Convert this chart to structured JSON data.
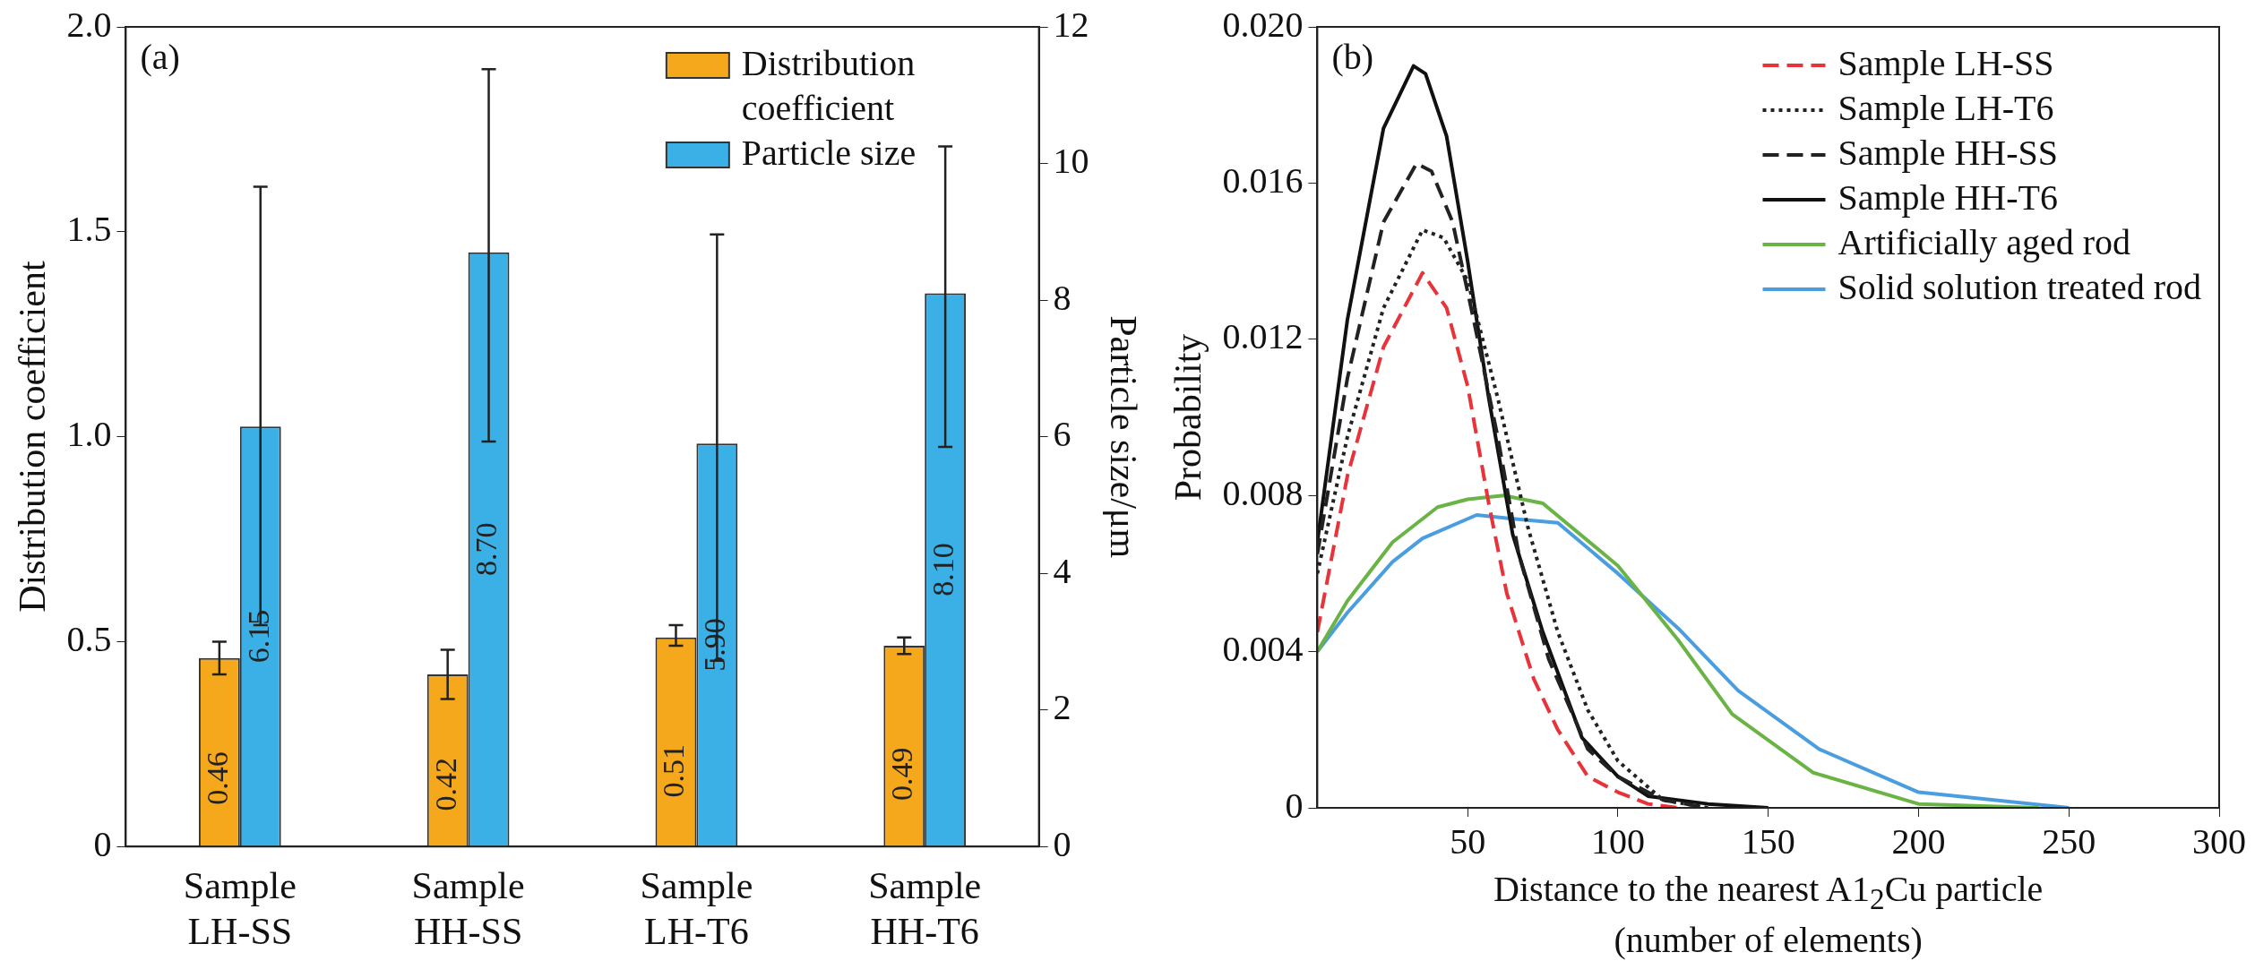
{
  "chart_data": [
    {
      "type": "bar",
      "ylabel": "Distribution coefficient",
      "y2label": "Particle size/μm",
      "categories": [
        "Sample LH-SS",
        "Sample HH-SS",
        "Sample LH-T6",
        "Sample HH-T6"
      ],
      "series": [
        {
          "name": "Distribution coefficient",
          "color": "#f5a81c",
          "values": [
            0.46,
            0.42,
            0.51,
            0.49
          ],
          "errors": [
            [
              0.42,
              0.5
            ],
            [
              0.36,
              0.48
            ],
            [
              0.49,
              0.54
            ],
            [
              0.47,
              0.51
            ]
          ],
          "value_labels": [
            "0.46",
            "0.42",
            "0.51",
            "0.49"
          ]
        },
        {
          "name": "Particle size",
          "color": "#3ab0e6",
          "axis": "y2",
          "values": [
            6.15,
            8.7,
            5.9,
            8.1
          ],
          "errors": [
            [
              3.24,
              9.66
            ],
            [
              5.93,
              11.38
            ],
            [
              2.72,
              8.96
            ],
            [
              5.85,
              10.25
            ]
          ],
          "value_labels": [
            "6.15",
            "8.70",
            "5.90",
            "8.10"
          ]
        }
      ],
      "ylim": [
        0,
        2
      ],
      "yticks": [
        0,
        0.5,
        {
          "value": 1,
          "label": "1.0"
        },
        1.5,
        {
          "value": 2,
          "label": "2.0"
        }
      ],
      "y2lim": [
        0,
        12
      ],
      "y2ticks": [
        0,
        2,
        4,
        6,
        8,
        10,
        12
      ],
      "legend": "top right",
      "grid": false,
      "annotations": [
        "(a)"
      ]
    },
    {
      "type": "line",
      "xlabel": "Distance to the nearest A1$_{2}$Cu particle (number of elements)",
      "ylabel": "Probability",
      "series": [
        {
          "name": "Sample LH-SS",
          "color": "#e8333a",
          "line_style": "dashed",
          "x": [
            0,
            10,
            22,
            35,
            43,
            50,
            57,
            63,
            72,
            80,
            90,
            100,
            110,
            120
          ],
          "values": [
            0.0045,
            0.0085,
            0.0118,
            0.0137,
            0.0128,
            0.0108,
            0.0078,
            0.0055,
            0.0033,
            0.002,
            0.0008,
            0.0004,
            0.0001,
            0
          ]
        },
        {
          "name": "Sample LH-T6",
          "color": "#222222",
          "line_style": "dotted",
          "x": [
            0,
            10,
            22,
            35,
            42,
            50,
            60,
            70,
            80,
            90,
            100,
            115,
            130
          ],
          "values": [
            0.006,
            0.0095,
            0.0128,
            0.0148,
            0.0146,
            0.0135,
            0.0105,
            0.0072,
            0.0045,
            0.0025,
            0.0012,
            0.0002,
            0
          ]
        },
        {
          "name": "Sample HH-SS",
          "color": "#222222",
          "line_style": "dashed",
          "x": [
            0,
            10,
            22,
            33,
            38,
            45,
            52,
            60,
            67,
            77,
            90,
            100,
            115,
            130
          ],
          "values": [
            0.0065,
            0.011,
            0.015,
            0.0165,
            0.0163,
            0.015,
            0.0125,
            0.0095,
            0.0065,
            0.0038,
            0.0015,
            0.0008,
            0.0002,
            0
          ]
        },
        {
          "name": "Sample HH-T6",
          "color": "#111111",
          "line_style": "solid",
          "x": [
            0,
            10,
            22,
            32,
            36,
            43,
            50,
            57,
            65,
            75,
            88,
            100,
            110,
            130,
            150
          ],
          "values": [
            0.0068,
            0.0125,
            0.0174,
            0.019,
            0.0188,
            0.0172,
            0.014,
            0.0105,
            0.007,
            0.0045,
            0.0018,
            0.0008,
            0.0003,
            0.0001,
            0
          ]
        },
        {
          "name": "Artificially aged rod",
          "color": "#6ab446",
          "line_style": "solid",
          "x": [
            0,
            10,
            25,
            40,
            50,
            62,
            75,
            100,
            120,
            138,
            165,
            200,
            240
          ],
          "values": [
            0.004,
            0.0053,
            0.0068,
            0.0077,
            0.0079,
            0.008,
            0.0078,
            0.0062,
            0.0043,
            0.0024,
            0.0009,
            0.0001,
            0
          ]
        },
        {
          "name": "Solid solution treated rod",
          "color": "#4a9ee0",
          "line_style": "solid",
          "x": [
            0,
            10,
            25,
            35,
            53,
            65,
            80,
            100,
            120,
            140,
            167,
            200,
            250
          ],
          "values": [
            0.004,
            0.005,
            0.0063,
            0.0069,
            0.0075,
            0.0074,
            0.0073,
            0.006,
            0.0046,
            0.003,
            0.0015,
            0.0004,
            0
          ]
        }
      ],
      "xlim": [
        0,
        300
      ],
      "xticks": [
        50,
        100,
        150,
        200,
        250,
        300
      ],
      "ylim": [
        0,
        0.02
      ],
      "yticks": [
        0,
        0.004,
        0.008,
        0.012,
        0.016,
        {
          "value": 0.02,
          "label": "0.020"
        }
      ],
      "legend": "top right",
      "grid": false,
      "marker": "none",
      "annotations": [
        "(b)"
      ]
    }
  ]
}
